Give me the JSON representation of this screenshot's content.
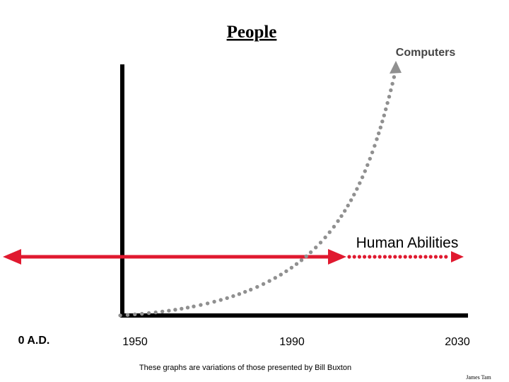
{
  "title": "People",
  "curve_label": "Computers",
  "line_label": "Human Abilities",
  "x_labels": {
    "start": "0 A.D.",
    "tick_1": "1950",
    "tick_2": "1990",
    "tick_3": "2030"
  },
  "footnote": "These graphs are variations of those presented by Bill Buxton",
  "author": "James Tam",
  "colors": {
    "axis": "#000000",
    "human_line": "#e0192f",
    "computer_curve": "#909090",
    "text": "#000000",
    "computer_label": "#444444"
  }
}
